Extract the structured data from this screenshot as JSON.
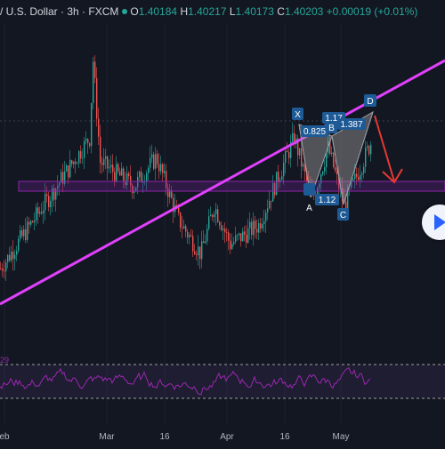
{
  "header": {
    "symbol": "/ U.S. Dollar · 3h · FXCM",
    "o_label": "O",
    "open": "1.40184",
    "h_label": "H",
    "high": "1.40217",
    "l_label": "L",
    "low": "1.40173",
    "c_label": "C",
    "close": "1.40203",
    "change": "+0.00019 (+0.01%)"
  },
  "colors": {
    "background": "#131722",
    "up": "#26a69a",
    "down": "#ef5350",
    "trendline": "#e040fb",
    "zone": "#7b1fa2",
    "pattern_fill": "#9e9e9e",
    "label_bg": "#1e5a96",
    "arrow": "#e53935",
    "rsi": "#9c27b0"
  },
  "chart_data": {
    "type": "candlestick",
    "x_ticks": [
      "eb",
      "Mar",
      "16",
      "Apr",
      "16",
      "May"
    ],
    "price_series_approx": [
      [
        "eb",
        1.375
      ],
      [
        "Mar",
        1.402
      ],
      [
        "Mar 4",
        1.418
      ],
      [
        "Mar 10",
        1.397
      ],
      [
        "16",
        1.392
      ],
      [
        "Mar 22",
        1.398
      ],
      [
        "Mar 26",
        1.385
      ],
      [
        "Apr",
        1.378
      ],
      [
        "Apr 8",
        1.388
      ],
      [
        "Apr 12",
        1.38
      ],
      [
        "16",
        1.384
      ],
      [
        "Apr 18",
        1.402
      ],
      [
        "Apr 24",
        1.389
      ],
      [
        "Apr 28",
        1.4
      ],
      [
        "Apr 30",
        1.388
      ],
      [
        "May",
        1.401
      ]
    ],
    "harmonic_pattern": {
      "points": [
        "X",
        "A",
        "B",
        "C",
        "D"
      ],
      "ratios": [
        "0.825",
        "1.17",
        "1.12",
        "1.387"
      ]
    },
    "rsi": {
      "label": "29"
    }
  },
  "play_icon": "play-icon"
}
